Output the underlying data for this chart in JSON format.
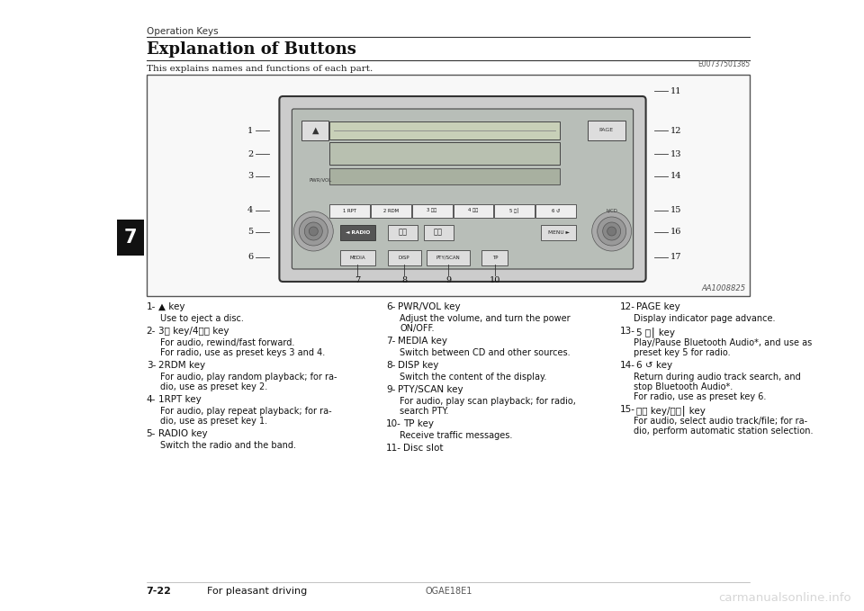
{
  "bg_color": "#ffffff",
  "section_label": "Operation Keys",
  "title": "Explanation of Buttons",
  "code_top_right": "E00737501385",
  "intro_text": "This explains names and functions of each part.",
  "diagram_label": "AA1008825",
  "tab_label": "7",
  "footer_left": "7-22",
  "footer_center_left": "For pleasant driving",
  "footer_center": "OGAE18E1",
  "watermark": "carmanualsonline.info",
  "left_column": [
    {
      "num": "1-",
      "key": "▲ key",
      "desc": "Use to eject a disc."
    },
    {
      "num": "2-",
      "key": "3⏮ key/4⏭⏭ key",
      "desc": "For audio, rewind/fast forward.\nFor radio, use as preset keys 3 and 4."
    },
    {
      "num": "3-",
      "key": "2RDM key",
      "desc": "For audio, play random playback; for ra-\ndio, use as preset key 2."
    },
    {
      "num": "4-",
      "key": "1RPT key",
      "desc": "For audio, play repeat playback; for ra-\ndio, use as preset key 1."
    },
    {
      "num": "5-",
      "key": "RADIO key",
      "desc": "Switch the radio and the band."
    }
  ],
  "mid_column": [
    {
      "num": "6-",
      "key": "PWR/VOL key",
      "desc": "Adjust the volume, and turn the power\nON/OFF."
    },
    {
      "num": "7-",
      "key": "MEDIA key",
      "desc": "Switch between CD and other sources."
    },
    {
      "num": "8-",
      "key": "DISP key",
      "desc": "Switch the content of the display."
    },
    {
      "num": "9-",
      "key": "PTY/SCAN key",
      "desc": "For audio, play scan playback; for radio,\nsearch PTY."
    },
    {
      "num": "10-",
      "key": "TP key",
      "desc": "Receive traffic messages."
    },
    {
      "num": "11-",
      "key": "Disc slot",
      "desc": ""
    }
  ],
  "right_column": [
    {
      "num": "12-",
      "key": "PAGE key",
      "desc": "Display indicator page advance."
    },
    {
      "num": "13-",
      "key": "5 ⏵⎮ key",
      "desc": "Play/Pause Bluetooth Audio*, and use as\npreset key 5 for radio."
    },
    {
      "num": "14-",
      "key": "6 ↺ key",
      "desc": "Return during audio track search, and\nstop Bluetooth Audio*.\nFor radio, use as preset key 6."
    },
    {
      "num": "15-",
      "key": "⏮⏮ key/⏭⏭⎮ key",
      "desc": "For audio, select audio track/file; for ra-\ndio, perform automatic station selection."
    }
  ]
}
